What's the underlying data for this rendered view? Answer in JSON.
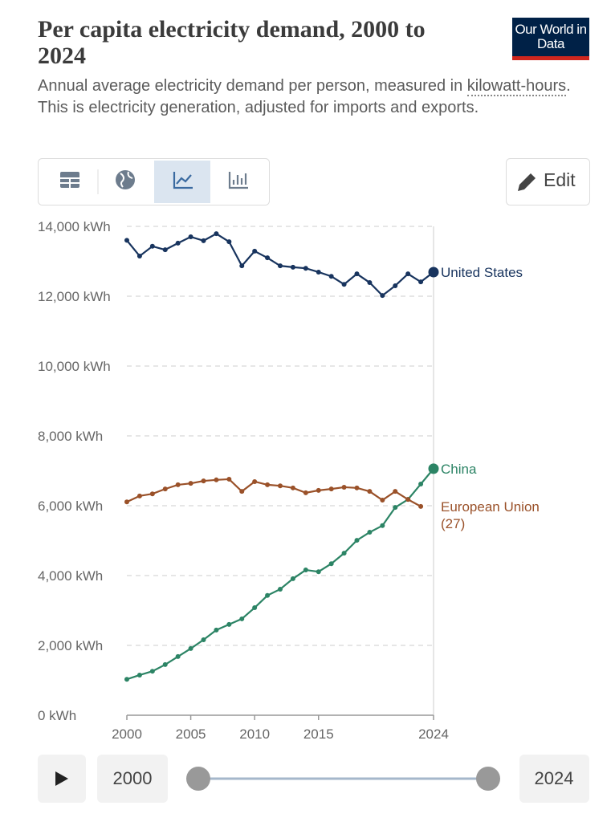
{
  "chart_data": {
    "type": "line",
    "title": "Per capita electricity demand, 2000 to 2024",
    "subtitle": [
      "Annual average electricity demand per person, measured in ",
      "kilowatt-hours",
      ". This is electricity generation, adjusted for imports and exports."
    ],
    "x": [
      2000,
      2001,
      2002,
      2003,
      2004,
      2005,
      2006,
      2007,
      2008,
      2009,
      2010,
      2011,
      2012,
      2013,
      2014,
      2015,
      2016,
      2017,
      2018,
      2019,
      2020,
      2021,
      2022,
      2023,
      2024
    ],
    "xlim": [
      2000,
      2024
    ],
    "xticks": [
      2000,
      2005,
      2010,
      2015,
      2024
    ],
    "ylim": [
      0,
      14000
    ],
    "yticks": [
      {
        "value": 0,
        "label": "0 kWh"
      },
      {
        "value": 2000,
        "label": "2,000 kWh"
      },
      {
        "value": 4000,
        "label": "4,000 kWh"
      },
      {
        "value": 6000,
        "label": "6,000 kWh"
      },
      {
        "value": 8000,
        "label": "8,000 kWh"
      },
      {
        "value": 10000,
        "label": "10,000 kWh"
      },
      {
        "value": 12000,
        "label": "12,000 kWh"
      },
      {
        "value": 14000,
        "label": "14,000 kWh"
      }
    ],
    "grid": true,
    "series": [
      {
        "name": "United States",
        "color": "#18345e",
        "values": [
          13600,
          13150,
          13430,
          13330,
          13520,
          13700,
          13590,
          13790,
          13560,
          12870,
          13290,
          13100,
          12870,
          12830,
          12800,
          12690,
          12570,
          12340,
          12640,
          12390,
          12020,
          12300,
          12640,
          12410,
          12690
        ]
      },
      {
        "name": "China",
        "color": "#2c8465",
        "values": [
          1030,
          1150,
          1260,
          1450,
          1680,
          1910,
          2160,
          2440,
          2600,
          2760,
          3080,
          3430,
          3610,
          3910,
          4160,
          4110,
          4340,
          4640,
          5010,
          5240,
          5430,
          5950,
          6180,
          6620,
          7060
        ]
      },
      {
        "name": "European Union (27)",
        "color": "#9a5129",
        "values": [
          6110,
          6280,
          6340,
          6480,
          6600,
          6640,
          6710,
          6740,
          6760,
          6410,
          6690,
          6600,
          6570,
          6510,
          6370,
          6440,
          6480,
          6530,
          6510,
          6410,
          6160,
          6410,
          6180,
          5980,
          null
        ]
      }
    ]
  },
  "ui": {
    "logo": "Our World in Data",
    "edit": "Edit",
    "timeline": {
      "start": "2000",
      "end": "2024"
    }
  }
}
